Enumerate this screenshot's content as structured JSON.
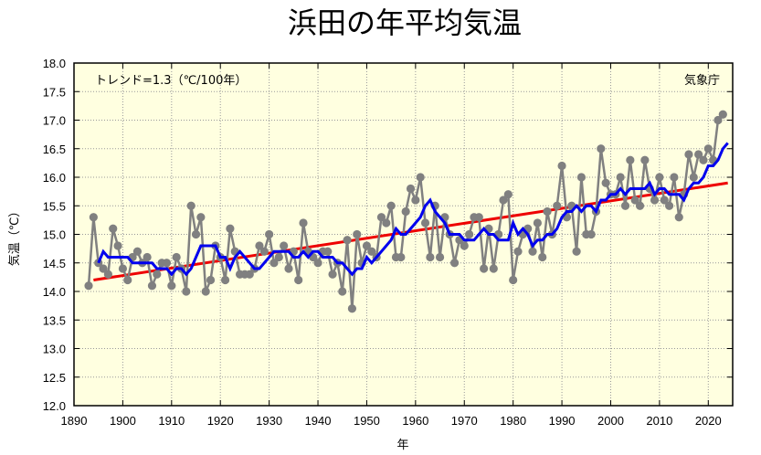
{
  "chart_data": {
    "type": "line",
    "title": "浜田の年平均気温",
    "xlabel": "年",
    "ylabel": "気温（℃）",
    "xlim": [
      1890,
      2025
    ],
    "ylim": [
      12.0,
      18.0
    ],
    "x_ticks": [
      1890,
      1900,
      1910,
      1920,
      1930,
      1940,
      1950,
      1960,
      1970,
      1980,
      1990,
      2000,
      2010,
      2020
    ],
    "y_ticks": [
      "12.0",
      "12.5",
      "13.0",
      "13.5",
      "14.0",
      "14.5",
      "15.0",
      "15.5",
      "16.0",
      "16.5",
      "17.0",
      "17.5",
      "18.0"
    ],
    "grid": true,
    "trend_label": "トレンド=1.3（℃/100年）",
    "source_label": "気象庁",
    "colors": {
      "background": "#FFFFE0",
      "annual": "#808080",
      "moving_average": "#0000EE",
      "trend": "#EE0000",
      "grid": "#999999"
    },
    "series": [
      {
        "role": "annual",
        "x_start": 1893,
        "values": [
          14.1,
          15.3,
          14.5,
          14.4,
          14.3,
          15.1,
          14.8,
          14.4,
          14.2,
          14.6,
          14.7,
          14.5,
          14.6,
          14.1,
          14.3,
          14.5,
          14.5,
          14.1,
          14.6,
          14.4,
          14.0,
          15.5,
          15.0,
          15.3,
          14.0,
          14.2,
          14.8,
          14.6,
          14.2,
          15.1,
          14.7,
          14.3,
          14.3,
          14.3,
          14.4,
          14.8,
          14.7,
          15.0,
          14.5,
          14.6,
          14.8,
          14.4,
          14.7,
          14.2,
          15.2,
          14.7,
          14.6,
          14.5,
          14.7,
          14.7,
          14.3,
          14.5,
          14.0,
          14.9,
          13.7,
          15.0,
          14.5,
          14.8,
          14.7,
          14.6,
          15.3,
          15.2,
          15.5,
          14.6,
          14.6,
          15.4,
          15.8,
          15.6,
          16.0,
          15.2,
          14.6,
          15.5,
          14.6,
          15.3,
          15.0,
          14.5,
          14.9,
          14.8,
          15.0,
          15.3,
          15.3,
          14.4,
          15.1,
          14.4,
          15.0,
          15.6,
          15.7,
          14.2,
          14.7,
          15.0,
          15.1,
          14.7,
          15.2,
          14.6,
          15.4,
          15.0,
          15.5,
          16.2,
          15.3,
          15.5,
          14.7,
          16.0,
          15.0,
          15.0,
          15.4,
          16.5,
          15.9,
          15.7,
          15.7,
          16.0,
          15.5,
          16.3,
          15.6,
          15.5,
          16.3,
          15.8,
          15.6,
          16.0,
          15.6,
          15.5,
          16.0,
          15.3,
          15.7,
          16.4,
          16.0,
          16.4,
          16.3,
          16.5,
          16.3,
          17.0,
          17.1
        ]
      },
      {
        "role": "moving_average",
        "x_start": 1895,
        "values": [
          14.5,
          14.7,
          14.6,
          14.6,
          14.6,
          14.6,
          14.6,
          14.5,
          14.5,
          14.5,
          14.5,
          14.5,
          14.4,
          14.4,
          14.4,
          14.3,
          14.4,
          14.4,
          14.3,
          14.4,
          14.6,
          14.8,
          14.8,
          14.8,
          14.8,
          14.6,
          14.6,
          14.4,
          14.6,
          14.7,
          14.6,
          14.5,
          14.4,
          14.4,
          14.5,
          14.6,
          14.7,
          14.7,
          14.7,
          14.7,
          14.6,
          14.6,
          14.7,
          14.6,
          14.7,
          14.7,
          14.6,
          14.6,
          14.6,
          14.5,
          14.5,
          14.4,
          14.3,
          14.4,
          14.4,
          14.6,
          14.5,
          14.6,
          14.7,
          14.8,
          14.9,
          15.1,
          15.0,
          15.0,
          15.1,
          15.2,
          15.3,
          15.5,
          15.6,
          15.4,
          15.3,
          15.2,
          15.0,
          15.0,
          15.0,
          14.9,
          14.9,
          14.9,
          15.0,
          15.1,
          15.0,
          15.0,
          14.9,
          14.9,
          14.9,
          15.2,
          15.0,
          15.1,
          15.0,
          14.8,
          14.9,
          14.9,
          15.0,
          15.0,
          15.1,
          15.3,
          15.4,
          15.4,
          15.5,
          15.4,
          15.5,
          15.5,
          15.4,
          15.6,
          15.6,
          15.7,
          15.7,
          15.8,
          15.7,
          15.8,
          15.8,
          15.8,
          15.8,
          15.9,
          15.7,
          15.8,
          15.8,
          15.7,
          15.7,
          15.7,
          15.6,
          15.8,
          15.9,
          15.9,
          16.0,
          16.2,
          16.2,
          16.3,
          16.5,
          16.6
        ]
      },
      {
        "role": "trend",
        "x": [
          1894,
          2024
        ],
        "values": [
          14.2,
          15.9
        ]
      }
    ]
  }
}
